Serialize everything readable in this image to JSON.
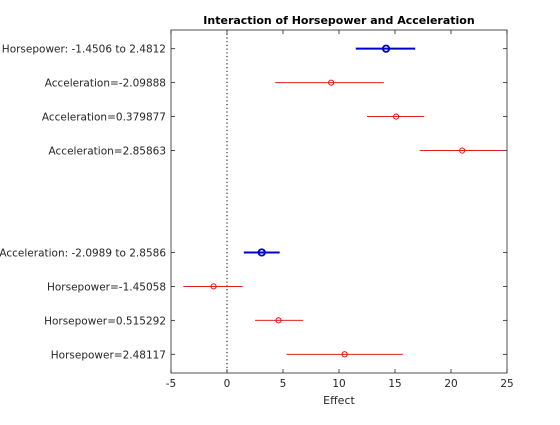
{
  "chart_data": {
    "type": "interaction-plot",
    "title": "Interaction of Horsepower and Acceleration",
    "xlabel": "Effect",
    "xlim": [
      -5,
      25
    ],
    "xticks": [
      "-5",
      "0",
      "5",
      "10",
      "15",
      "20",
      "25"
    ],
    "xtick_values": [
      -5,
      0,
      5,
      10,
      15,
      20,
      25
    ],
    "reference_line": 0,
    "groups": [
      {
        "main": {
          "label": "Horsepower: -1.4506 to 2.4812",
          "estimate": 14.2,
          "lower": 11.5,
          "upper": 16.8
        },
        "items": [
          {
            "label": "Acceleration=-2.09888",
            "estimate": 9.3,
            "lower": 4.3,
            "upper": 14.0
          },
          {
            "label": "Acceleration=0.379877",
            "estimate": 15.1,
            "lower": 12.5,
            "upper": 17.6
          },
          {
            "label": "Acceleration=2.85863",
            "estimate": 21.0,
            "lower": 17.2,
            "upper": 24.7
          }
        ]
      },
      {
        "main": {
          "label": "Acceleration: -2.0989 to 2.8586",
          "estimate": 3.1,
          "lower": 1.5,
          "upper": 4.7
        },
        "items": [
          {
            "label": "Horsepower=-1.45058",
            "estimate": -1.2,
            "lower": -3.9,
            "upper": 1.4
          },
          {
            "label": "Horsepower=0.515292",
            "estimate": 4.6,
            "lower": 2.5,
            "upper": 6.8
          },
          {
            "label": "Horsepower=2.48117",
            "estimate": 10.5,
            "lower": 5.3,
            "upper": 15.7
          }
        ]
      }
    ],
    "colors": {
      "main": "#0000cc",
      "item": "#dd0000",
      "reference": "#000000",
      "axis": "#262626"
    }
  }
}
